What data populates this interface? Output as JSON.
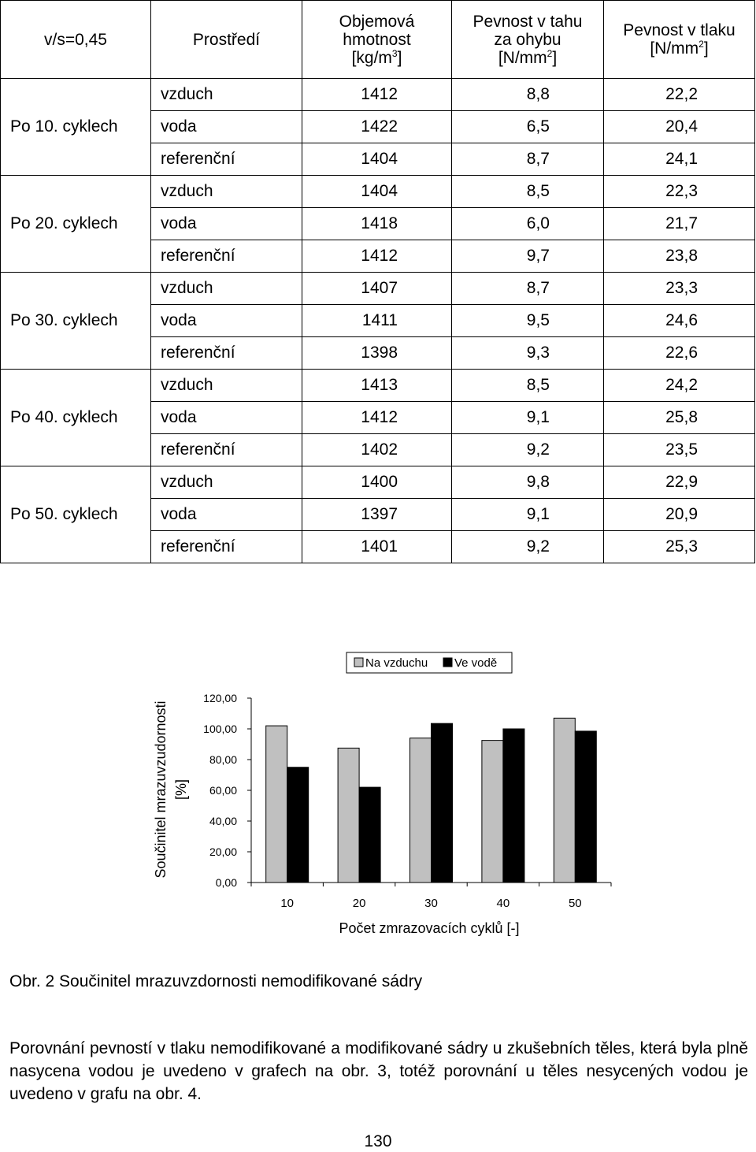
{
  "table": {
    "header": {
      "ratio": "v/s=0,45",
      "environment": "Prostředí",
      "density": {
        "line1": "Objemová",
        "line2": "hmotnost",
        "line3_pre": "[kg/m",
        "line3_sup": "3",
        "line3_post": "]"
      },
      "flexural": {
        "line1": "Pevnost v tahu",
        "line2": "za ohybu",
        "line3_pre": "[N/mm",
        "line3_sup": "2",
        "line3_post": "]"
      },
      "compressive": {
        "line1": "Pevnost v tlaku",
        "line2_pre": "[N/mm",
        "line2_sup": "2",
        "line2_post": "]"
      }
    },
    "groups": [
      {
        "cycle": "Po 10. cyklech",
        "rows": [
          {
            "env": "vzduch",
            "density": "1412",
            "flexural": "8,8",
            "compressive": "22,2"
          },
          {
            "env": "voda",
            "density": "1422",
            "flexural": "6,5",
            "compressive": "20,4"
          },
          {
            "env": "referenční",
            "density": "1404",
            "flexural": "8,7",
            "compressive": "24,1"
          }
        ]
      },
      {
        "cycle": "Po 20. cyklech",
        "rows": [
          {
            "env": "vzduch",
            "density": "1404",
            "flexural": "8,5",
            "compressive": "22,3"
          },
          {
            "env": "voda",
            "density": "1418",
            "flexural": "6,0",
            "compressive": "21,7"
          },
          {
            "env": "referenční",
            "density": "1412",
            "flexural": "9,7",
            "compressive": "23,8"
          }
        ]
      },
      {
        "cycle": "Po 30. cyklech",
        "rows": [
          {
            "env": "vzduch",
            "density": "1407",
            "flexural": "8,7",
            "compressive": "23,3"
          },
          {
            "env": "voda",
            "density": "1411",
            "flexural": "9,5",
            "compressive": "24,6"
          },
          {
            "env": "referenční",
            "density": "1398",
            "flexural": "9,3",
            "compressive": "22,6"
          }
        ]
      },
      {
        "cycle": "Po 40. cyklech",
        "rows": [
          {
            "env": "vzduch",
            "density": "1413",
            "flexural": "8,5",
            "compressive": "24,2"
          },
          {
            "env": "voda",
            "density": "1412",
            "flexural": "9,1",
            "compressive": "25,8"
          },
          {
            "env": "referenční",
            "density": "1402",
            "flexural": "9,2",
            "compressive": "23,5"
          }
        ]
      },
      {
        "cycle": "Po 50. cyklech",
        "rows": [
          {
            "env": "vzduch",
            "density": "1400",
            "flexural": "9,8",
            "compressive": "22,9"
          },
          {
            "env": "voda",
            "density": "1397",
            "flexural": "9,1",
            "compressive": "20,9"
          },
          {
            "env": "referenční",
            "density": "1401",
            "flexural": "9,2",
            "compressive": "25,3"
          }
        ]
      }
    ]
  },
  "chart_data": {
    "type": "bar",
    "categories": [
      "10",
      "20",
      "30",
      "40",
      "50"
    ],
    "series": [
      {
        "name": "Na vzduchu",
        "color": "#c0c0c0",
        "values": [
          102,
          87.5,
          94,
          92.5,
          107
        ]
      },
      {
        "name": "Ve vodě",
        "color": "#000000",
        "values": [
          75,
          62,
          103.5,
          100,
          98.5
        ]
      }
    ],
    "yticks": [
      "0,00",
      "20,00",
      "40,00",
      "60,00",
      "80,00",
      "100,00",
      "120,00"
    ],
    "ylim": [
      0,
      120
    ],
    "ylabel_line1": "Součinitel mrazuvzudornosti",
    "ylabel_line2": "[%]",
    "xlabel": "Počet zmrazovacích cyklů [-]",
    "legend_position": "top",
    "grid": false
  },
  "caption": "Obr.  2 Součinitel mrazuvzdornosti nemodifikované sádry",
  "paragraph": "Porovnání pevností v tlaku nemodifikované a modifikované sádry u zkušebních těles, která byla plně nasycena vodou je uvedeno v grafech na obr. 3, totéž porovnání u těles nesycených vodou je uvedeno v grafu na obr. 4.",
  "page_number": "130"
}
